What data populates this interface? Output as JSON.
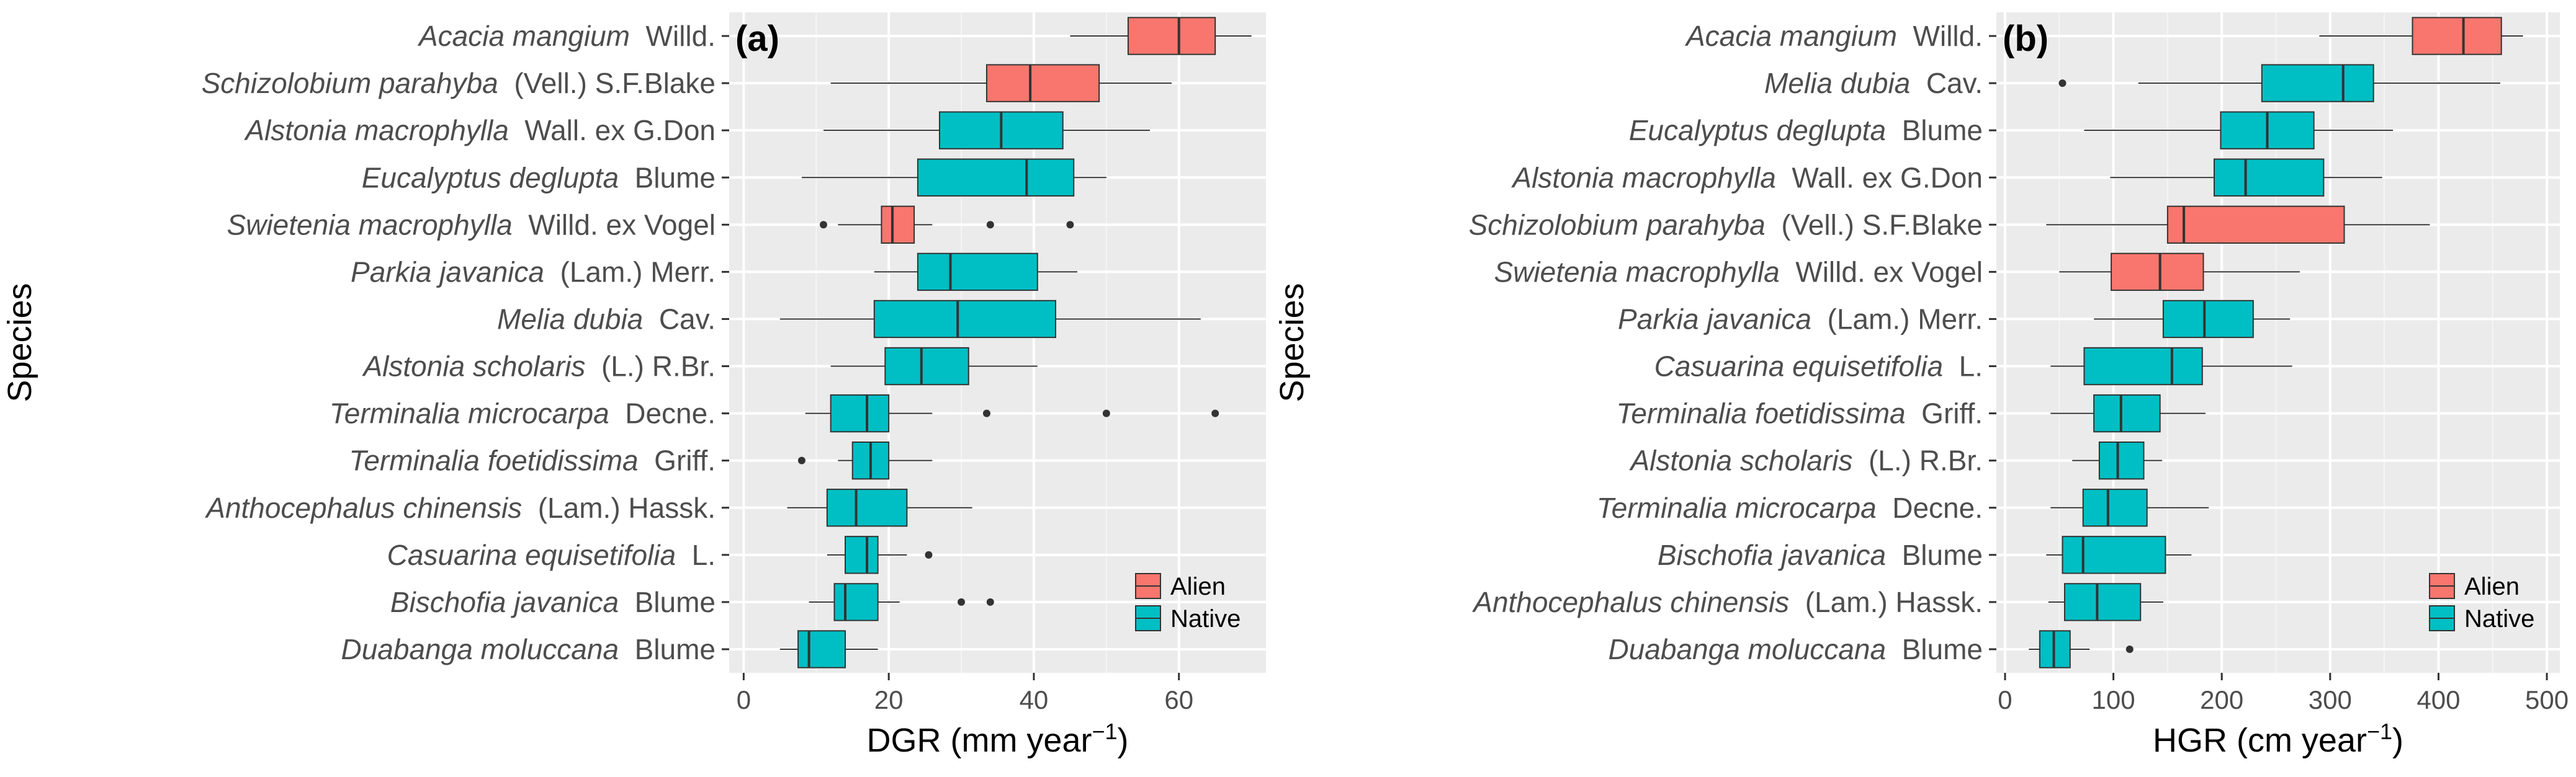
{
  "chart_data": [
    {
      "type": "boxplot",
      "panel_label": "(a)",
      "xlabel": "DGR (mm year",
      "xlabel_sup": "−1",
      "xlabel_close": ")",
      "ylabel": "Species",
      "xlim": [
        -2,
        72
      ],
      "xticks": [
        0,
        20,
        40,
        60
      ],
      "xtick_labels": [
        "0",
        "20",
        "40",
        "60"
      ],
      "legend": {
        "position": "bottom-right",
        "entries": [
          {
            "name": "Alien",
            "color": "#F8766D"
          },
          {
            "name": "Native",
            "color": "#00BFC4"
          }
        ]
      },
      "series": [
        {
          "italic": "Acacia mangium",
          "authority": "Willd.",
          "group": "Alien",
          "min": 45,
          "q1": 53,
          "median": 60,
          "q3": 65,
          "max": 70,
          "outliers": []
        },
        {
          "italic": "Schizolobium parahyba",
          "authority": "(Vell.) S.F.Blake",
          "group": "Alien",
          "min": 12,
          "q1": 33.5,
          "median": 39.5,
          "q3": 49,
          "max": 59,
          "outliers": []
        },
        {
          "italic": "Alstonia macrophylla",
          "authority": "Wall. ex G.Don",
          "group": "Native",
          "min": 11,
          "q1": 27,
          "median": 35.5,
          "q3": 44,
          "max": 56,
          "outliers": []
        },
        {
          "italic": "Eucalyptus deglupta",
          "authority": "Blume",
          "group": "Native",
          "min": 8,
          "q1": 24,
          "median": 39,
          "q3": 45.5,
          "max": 50,
          "outliers": []
        },
        {
          "italic": "Swietenia macrophylla",
          "authority": "Willd. ex Vogel",
          "group": "Alien",
          "min": 13,
          "q1": 19,
          "median": 20.5,
          "q3": 23.5,
          "max": 26,
          "outliers": [
            11,
            34,
            45
          ]
        },
        {
          "italic": "Parkia javanica",
          "authority": "(Lam.) Merr.",
          "group": "Native",
          "min": 18,
          "q1": 24,
          "median": 28.5,
          "q3": 40.5,
          "max": 46,
          "outliers": []
        },
        {
          "italic": "Melia dubia",
          "authority": "Cav.",
          "group": "Native",
          "min": 5,
          "q1": 18,
          "median": 29.5,
          "q3": 43,
          "max": 63,
          "outliers": []
        },
        {
          "italic": "Alstonia scholaris",
          "authority": "(L.) R.Br.",
          "group": "Native",
          "min": 12,
          "q1": 19.5,
          "median": 24.5,
          "q3": 31,
          "max": 40.5,
          "outliers": []
        },
        {
          "italic": "Terminalia microcarpa",
          "authority": "Decne.",
          "group": "Native",
          "min": 8.5,
          "q1": 12,
          "median": 17,
          "q3": 20,
          "max": 26,
          "outliers": [
            33.5,
            50,
            65
          ]
        },
        {
          "italic": "Terminalia foetidissima",
          "authority": "Griff.",
          "group": "Native",
          "min": 13,
          "q1": 15,
          "median": 17.5,
          "q3": 20,
          "max": 26,
          "outliers": [
            8
          ]
        },
        {
          "italic": "Anthocephalus chinensis",
          "authority": "(Lam.) Hassk.",
          "group": "Native",
          "min": 6,
          "q1": 11.5,
          "median": 15.5,
          "q3": 22.5,
          "max": 31.5,
          "outliers": []
        },
        {
          "italic": "Casuarina equisetifolia",
          "authority": "L.",
          "group": "Native",
          "min": 11.5,
          "q1": 14,
          "median": 17,
          "q3": 18.5,
          "max": 22.5,
          "outliers": [
            25.5
          ]
        },
        {
          "italic": "Bischofia javanica",
          "authority": "Blume",
          "group": "Native",
          "min": 9,
          "q1": 12.5,
          "median": 14,
          "q3": 18.5,
          "max": 21.5,
          "outliers": [
            30,
            34
          ]
        },
        {
          "italic": "Duabanga moluccana",
          "authority": "Blume",
          "group": "Native",
          "min": 5,
          "q1": 7.5,
          "median": 9,
          "q3": 14,
          "max": 18.5,
          "outliers": []
        }
      ]
    },
    {
      "type": "boxplot",
      "panel_label": "(b)",
      "xlabel": "HGR (cm year",
      "xlabel_sup": "−1",
      "xlabel_close": ")",
      "ylabel": "Species",
      "xlim": [
        -8,
        512
      ],
      "xticks": [
        0,
        100,
        200,
        300,
        400,
        500
      ],
      "xtick_labels": [
        "0",
        "100",
        "200",
        "300",
        "400",
        "500"
      ],
      "legend": {
        "position": "bottom-right",
        "entries": [
          {
            "name": "Alien",
            "color": "#F8766D"
          },
          {
            "name": "Native",
            "color": "#00BFC4"
          }
        ]
      },
      "series": [
        {
          "italic": "Acacia mangium",
          "authority": "Willd.",
          "group": "Alien",
          "min": 290,
          "q1": 376,
          "median": 423,
          "q3": 458,
          "max": 478,
          "outliers": []
        },
        {
          "italic": "Melia dubia",
          "authority": "Cav.",
          "group": "Native",
          "min": 123,
          "q1": 237,
          "median": 312,
          "q3": 340,
          "max": 457,
          "outliers": [
            53
          ]
        },
        {
          "italic": "Eucalyptus deglupta",
          "authority": "Blume",
          "group": "Native",
          "min": 73,
          "q1": 199,
          "median": 242,
          "q3": 285,
          "max": 358,
          "outliers": []
        },
        {
          "italic": "Alstonia macrophylla",
          "authority": "Wall. ex G.Don",
          "group": "Native",
          "min": 97,
          "q1": 193,
          "median": 222,
          "q3": 294,
          "max": 348,
          "outliers": []
        },
        {
          "italic": "Schizolobium parahyba",
          "authority": "(Vell.) S.F.Blake",
          "group": "Alien",
          "min": 38,
          "q1": 150,
          "median": 165,
          "q3": 313,
          "max": 392,
          "outliers": []
        },
        {
          "italic": "Swietenia macrophylla",
          "authority": "Willd. ex Vogel",
          "group": "Alien",
          "min": 50,
          "q1": 98,
          "median": 143,
          "q3": 183,
          "max": 272,
          "outliers": []
        },
        {
          "italic": "Parkia javanica",
          "authority": "(Lam.) Merr.",
          "group": "Native",
          "min": 82,
          "q1": 146,
          "median": 184,
          "q3": 229,
          "max": 263,
          "outliers": []
        },
        {
          "italic": "Casuarina equisetifolia",
          "authority": "L.",
          "group": "Native",
          "min": 42,
          "q1": 73,
          "median": 154,
          "q3": 182,
          "max": 265,
          "outliers": []
        },
        {
          "italic": "Terminalia foetidissima",
          "authority": "Griff.",
          "group": "Native",
          "min": 42,
          "q1": 82,
          "median": 107,
          "q3": 143,
          "max": 185,
          "outliers": []
        },
        {
          "italic": "Alstonia scholaris",
          "authority": "(L.) R.Br.",
          "group": "Native",
          "min": 62,
          "q1": 87,
          "median": 104,
          "q3": 128,
          "max": 145,
          "outliers": []
        },
        {
          "italic": "Terminalia microcarpa",
          "authority": "Decne.",
          "group": "Native",
          "min": 42,
          "q1": 72,
          "median": 95,
          "q3": 131,
          "max": 188,
          "outliers": []
        },
        {
          "italic": "Bischofia javanica",
          "authority": "Blume",
          "group": "Native",
          "min": 38,
          "q1": 53,
          "median": 72,
          "q3": 148,
          "max": 172,
          "outliers": []
        },
        {
          "italic": "Anthocephalus chinensis",
          "authority": "(Lam.) Hassk.",
          "group": "Native",
          "min": 40,
          "q1": 55,
          "median": 85,
          "q3": 125,
          "max": 146,
          "outliers": []
        },
        {
          "italic": "Duabanga moluccana",
          "authority": "Blume",
          "group": "Native",
          "min": 22,
          "q1": 32,
          "median": 45,
          "q3": 60,
          "max": 78,
          "outliers": [
            115
          ]
        }
      ]
    }
  ]
}
